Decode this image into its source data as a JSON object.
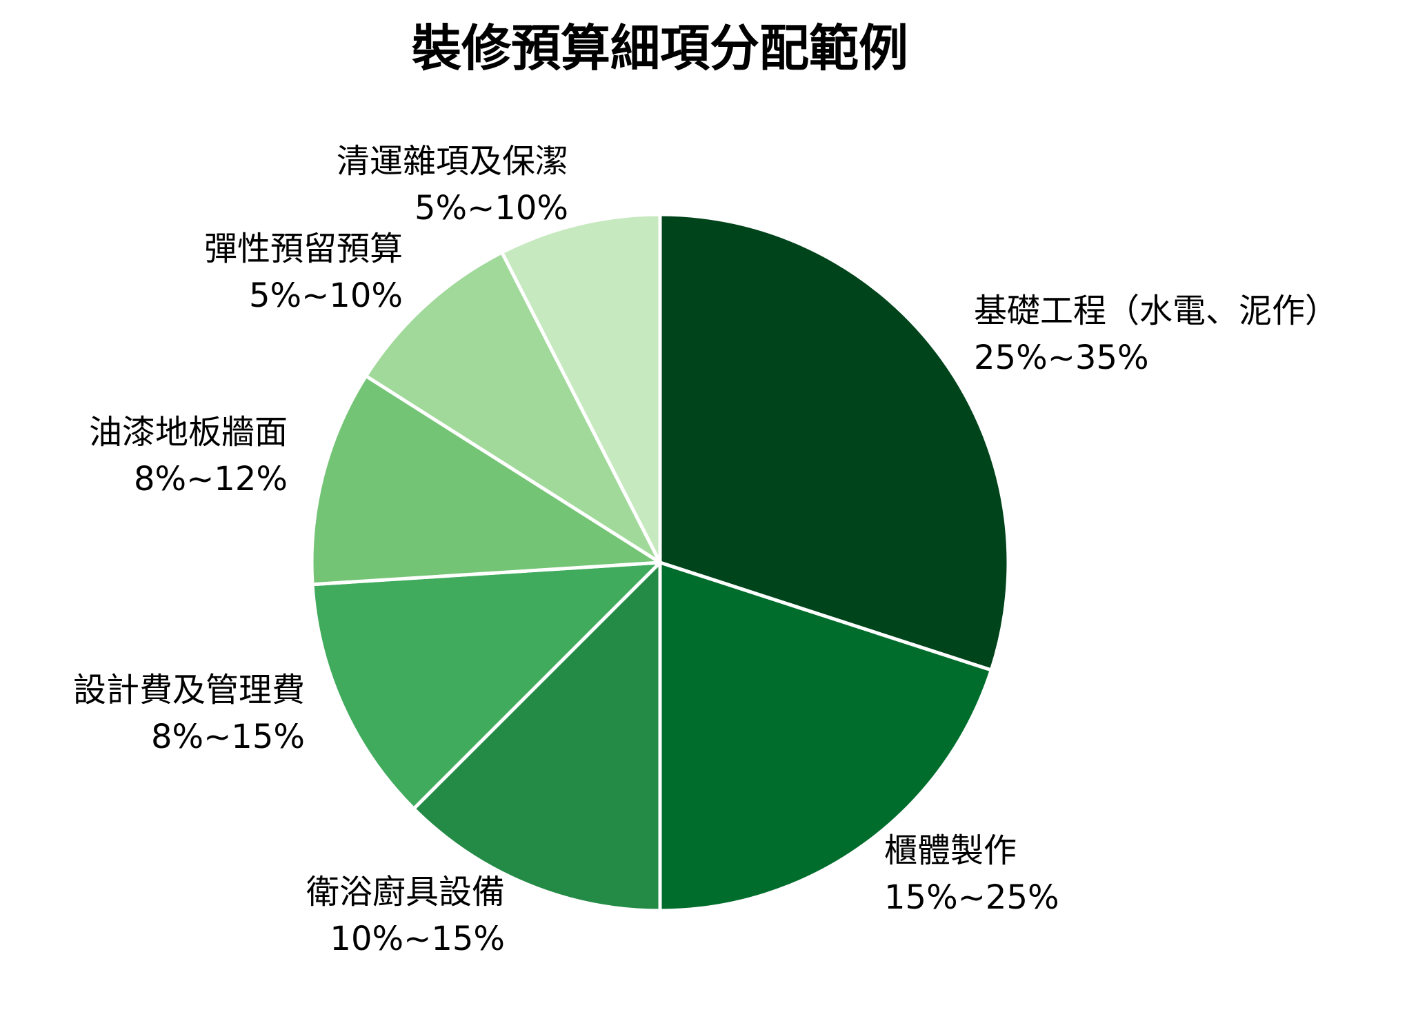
{
  "chart_data": {
    "type": "pie",
    "title": "裝修預算細項分配範例",
    "start_angle_deg": 0,
    "direction": "clockwise",
    "legend": "none",
    "slice_border_color": "#ffffff",
    "slices": [
      {
        "label": "基礎工程（水電、泥作）",
        "range_text": "25%~35%",
        "value": 30,
        "color": "#00441b"
      },
      {
        "label": "櫃體製作",
        "range_text": "15%~25%",
        "value": 20,
        "color": "#006d2c"
      },
      {
        "label": "衛浴廚具設備",
        "range_text": "10%~15%",
        "value": 12.5,
        "color": "#238b45"
      },
      {
        "label": "設計費及管理費",
        "range_text": "8%~15%",
        "value": 11.5,
        "color": "#41ab5d"
      },
      {
        "label": "油漆地板牆面",
        "range_text": "8%~12%",
        "value": 10,
        "color": "#74c476"
      },
      {
        "label": "彈性預留預算",
        "range_text": "5%~10%",
        "value": 8.5,
        "color": "#a1d99b"
      },
      {
        "label": "清運雜項及保潔",
        "range_text": "5%~10%",
        "value": 7.5,
        "color": "#c7e9c0"
      }
    ]
  }
}
